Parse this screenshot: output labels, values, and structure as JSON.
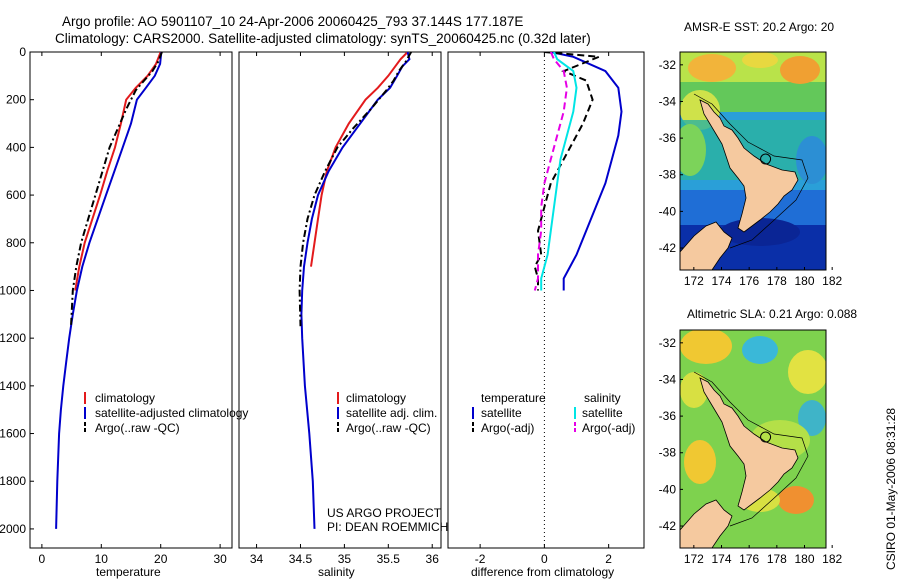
{
  "header": {
    "line1": "Argo profile: AO 5901107_10 24-Apr-2006 20060425_793 37.144S 177.187E",
    "line2": "Climatology: CARS2000. Satellite-adjusted climatology: synTS_20060425.nc (0.32d later)"
  },
  "credits": {
    "project": "US ARGO PROJECT",
    "pi": "PI: DEAN ROEMMICH",
    "stamp": "CSIRO 01-May-2006 08:31:28"
  },
  "colors": {
    "climatology": "#e31a1c",
    "satellite": "#0000cc",
    "argo": "#000000",
    "sal_satellite": "#00e5e5",
    "sal_argo": "#e600e6"
  },
  "chart_data": [
    {
      "type": "line",
      "xlabel": "temperature",
      "xlim": [
        -2,
        32
      ],
      "ylim": [
        2080,
        0
      ],
      "xticks": [
        0,
        10,
        20,
        30
      ],
      "yticks": [
        0,
        200,
        400,
        600,
        800,
        1000,
        1200,
        1400,
        1600,
        1800,
        2000
      ],
      "legend": [
        "climatology",
        "satellite-adjusted climatology",
        "Argo(..raw -QC)"
      ],
      "series": [
        {
          "name": "climatology",
          "style": "solid",
          "color": "#e31a1c",
          "x": [
            20.0,
            19.2,
            17.8,
            15.8,
            14.2,
            13.3,
            12.3,
            11.0,
            9.8,
            8.5,
            7.2,
            6.3,
            5.6
          ],
          "y": [
            0,
            50,
            100,
            150,
            200,
            300,
            400,
            500,
            600,
            700,
            800,
            900,
            1000
          ]
        },
        {
          "name": "satellite-adjusted climatology",
          "style": "solid",
          "color": "#0000cc",
          "x": [
            20.1,
            19.9,
            19.0,
            17.5,
            16.0,
            15.0,
            13.6,
            12.2,
            10.8,
            9.4,
            8.0,
            6.8,
            5.9,
            5.2,
            4.6,
            4.1,
            3.6,
            3.2,
            2.9,
            2.6,
            2.4
          ],
          "y": [
            0,
            50,
            100,
            150,
            200,
            300,
            400,
            500,
            600,
            700,
            800,
            900,
            1000,
            1100,
            1200,
            1300,
            1400,
            1500,
            1600,
            1800,
            2000
          ]
        },
        {
          "name": "Argo(..raw -QC)",
          "style": "dashdot",
          "color": "#000000",
          "x": [
            20.2,
            19.6,
            18.6,
            17.2,
            15.8,
            14.2,
            12.8,
            11.4,
            10.2,
            9.0,
            7.8,
            6.6,
            5.8,
            5.2,
            4.9
          ],
          "y": [
            0,
            40,
            80,
            120,
            160,
            240,
            320,
            400,
            500,
            600,
            700,
            800,
            900,
            1000,
            1150
          ]
        }
      ]
    },
    {
      "type": "line",
      "xlabel": "salinity",
      "xlim": [
        33.8,
        36.1
      ],
      "ylim": [
        2080,
        0
      ],
      "xticks": [
        34,
        34.5,
        35,
        35.5,
        36
      ],
      "legend": [
        "climatology",
        "satellite adj. clim.",
        "Argo(..raw -QC)"
      ],
      "series": [
        {
          "name": "climatology",
          "style": "solid",
          "color": "#e31a1c",
          "x": [
            35.72,
            35.64,
            35.58,
            35.5,
            35.38,
            35.24,
            35.05,
            34.9,
            34.8,
            34.74,
            34.7,
            34.66,
            34.62
          ],
          "y": [
            0,
            30,
            60,
            100,
            150,
            200,
            300,
            400,
            500,
            600,
            700,
            800,
            900
          ]
        },
        {
          "name": "satellite adj. clim.",
          "style": "solid",
          "color": "#0000cc",
          "x": [
            35.72,
            35.74,
            35.66,
            35.6,
            35.52,
            35.38,
            35.18,
            34.98,
            34.82,
            34.7,
            34.63,
            34.58,
            34.54,
            34.52,
            34.51,
            34.52,
            34.55,
            34.6,
            34.64,
            34.66
          ],
          "y": [
            0,
            30,
            60,
            100,
            150,
            200,
            300,
            400,
            500,
            600,
            700,
            800,
            900,
            1000,
            1100,
            1200,
            1400,
            1600,
            1800,
            2000
          ]
        },
        {
          "name": "Argo(..raw -QC)",
          "style": "dashdot",
          "color": "#000000",
          "x": [
            35.76,
            35.7,
            35.62,
            35.56,
            35.48,
            35.3,
            35.1,
            34.92,
            34.78,
            34.66,
            34.58,
            34.53,
            34.5,
            34.49,
            34.5
          ],
          "y": [
            0,
            40,
            80,
            120,
            160,
            240,
            320,
            400,
            500,
            600,
            700,
            800,
            900,
            1000,
            1150
          ]
        }
      ]
    },
    {
      "type": "line",
      "xlabel": "difference from climatology",
      "xlim": [
        -3,
        3.1
      ],
      "ylim": [
        2080,
        0
      ],
      "xticks": [
        -2,
        0,
        2
      ],
      "legend_groups": [
        "temperature",
        "salinity"
      ],
      "legend": [
        "satellite",
        "Argo(-adj)",
        "satellite",
        "Argo(-adj)"
      ],
      "series": [
        {
          "name": "temperature satellite",
          "style": "solid",
          "color": "#0000cc",
          "x": [
            0.2,
            0.9,
            1.9,
            2.3,
            2.4,
            2.3,
            2.1,
            1.9,
            1.6,
            1.3,
            1.0,
            0.8,
            0.6,
            0.6
          ],
          "y": [
            0,
            20,
            80,
            150,
            250,
            350,
            450,
            550,
            650,
            750,
            850,
            900,
            950,
            1000
          ]
        },
        {
          "name": "temperature Argo(-adj)",
          "style": "dashed",
          "color": "#000000",
          "x": [
            0.0,
            1.7,
            0.6,
            1.3,
            1.5,
            1.2,
            0.6,
            0.2,
            0.0,
            -0.2,
            -0.1,
            -0.3,
            -0.2,
            -0.2
          ],
          "y": [
            0,
            20,
            80,
            120,
            200,
            300,
            450,
            550,
            650,
            750,
            850,
            900,
            950,
            1000
          ]
        },
        {
          "name": "salinity satellite",
          "style": "solid",
          "color": "#00e5e5",
          "x": [
            0.3,
            0.4,
            0.9,
            1.0,
            0.9,
            0.7,
            0.5,
            0.4,
            0.3,
            0.2,
            0.1,
            0.0,
            -0.1,
            -0.1
          ],
          "y": [
            0,
            30,
            80,
            150,
            250,
            350,
            450,
            550,
            650,
            750,
            850,
            900,
            950,
            1000
          ]
        },
        {
          "name": "salinity Argo(-adj)",
          "style": "dashed",
          "color": "#e600e6",
          "x": [
            0.2,
            0.3,
            0.6,
            0.7,
            0.6,
            0.4,
            0.2,
            0.0,
            -0.1,
            -0.1,
            -0.2,
            -0.2,
            -0.2,
            -0.3
          ],
          "y": [
            0,
            30,
            80,
            150,
            250,
            350,
            450,
            550,
            650,
            750,
            850,
            900,
            950,
            1000
          ]
        }
      ]
    },
    {
      "type": "heatmap",
      "title": "AMSR-E SST: 20.2 Argo: 20",
      "xlim": [
        171,
        183
      ],
      "ylim": [
        -43.2,
        -31.3
      ],
      "xticks": [
        172,
        174,
        176,
        178,
        180,
        182
      ],
      "yticks": [
        -32,
        -34,
        -36,
        -38,
        -40,
        -42
      ],
      "profile_location": {
        "lon": 177.187,
        "lat": -37.144
      }
    },
    {
      "type": "heatmap",
      "title": "Altimetric SLA: 0.21 Argo: 0.088",
      "xlim": [
        171,
        183
      ],
      "ylim": [
        -43.2,
        -31.3
      ],
      "xticks": [
        172,
        174,
        176,
        178,
        180,
        182
      ],
      "yticks": [
        -32,
        -34,
        -36,
        -38,
        -40,
        -42
      ],
      "profile_location": {
        "lon": 177.187,
        "lat": -37.144
      }
    }
  ]
}
